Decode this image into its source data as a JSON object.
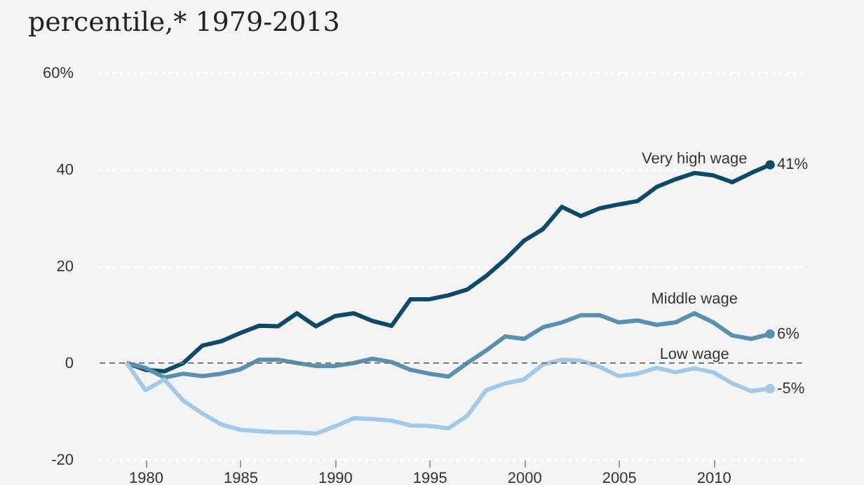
{
  "chart_data": {
    "type": "line",
    "title": "percentile,* 1979-2013",
    "x": [
      1979,
      1980,
      1981,
      1982,
      1983,
      1984,
      1985,
      1986,
      1987,
      1988,
      1989,
      1990,
      1991,
      1992,
      1993,
      1994,
      1995,
      1996,
      1997,
      1998,
      1999,
      2000,
      2001,
      2002,
      2003,
      2004,
      2005,
      2006,
      2007,
      2008,
      2009,
      2010,
      2011,
      2012,
      2013
    ],
    "series": [
      {
        "name": "Very high wage",
        "color": "#0d4a67",
        "values": [
          0,
          -1.4,
          -1.7,
          0,
          3.6,
          4.5,
          6.2,
          7.7,
          7.6,
          10.3,
          7.6,
          9.7,
          10.3,
          8.7,
          7.7,
          13.2,
          13.2,
          14,
          15.2,
          18,
          21.4,
          25.3,
          27.7,
          32.3,
          30.4,
          32,
          32.8,
          33.5,
          36.4,
          38,
          39.3,
          38.8,
          37.4,
          39.3,
          41
        ],
        "value_labels": [
          null,
          null,
          null,
          null,
          null,
          null,
          null,
          null,
          null,
          null,
          null,
          null,
          null,
          null,
          null,
          null,
          null,
          null,
          null,
          null,
          null,
          null,
          null,
          null,
          null,
          null,
          null,
          null,
          null,
          null,
          null,
          null,
          null,
          null,
          "41%"
        ]
      },
      {
        "name": "Middle wage",
        "color": "#5b8fae",
        "values": [
          0,
          -1,
          -3,
          -2.2,
          -2.7,
          -2.2,
          -1.3,
          0.7,
          0.7,
          0,
          -0.6,
          -0.6,
          0,
          0.9,
          0.2,
          -1.4,
          -2.2,
          -2.8,
          0,
          2.6,
          5.5,
          5,
          7.4,
          8.4,
          9.9,
          9.9,
          8.4,
          8.8,
          7.9,
          8.4,
          10.3,
          8.4,
          5.7,
          5,
          6
        ],
        "value_labels": [
          null,
          null,
          null,
          null,
          null,
          null,
          null,
          null,
          null,
          null,
          null,
          null,
          null,
          null,
          null,
          null,
          null,
          null,
          null,
          null,
          null,
          null,
          null,
          null,
          null,
          null,
          null,
          null,
          null,
          null,
          null,
          null,
          null,
          null,
          "6%"
        ]
      },
      {
        "name": "Low wage",
        "color": "#a3c9e8",
        "values": [
          0,
          -5.6,
          -3.4,
          -7.8,
          -10.4,
          -12.7,
          -13.8,
          -14.1,
          -14.3,
          -14.3,
          -14.6,
          -13.1,
          -11.4,
          -11.6,
          -11.9,
          -12.9,
          -13,
          -13.5,
          -10.9,
          -5.6,
          -4.2,
          -3.4,
          -0.3,
          0.7,
          0.5,
          -0.8,
          -2.7,
          -2.2,
          -1,
          -1.9,
          -1.1,
          -1.9,
          -4.2,
          -5.8,
          -5.3
        ],
        "value_labels": [
          null,
          null,
          null,
          null,
          null,
          null,
          null,
          null,
          null,
          null,
          null,
          null,
          null,
          null,
          null,
          null,
          null,
          null,
          null,
          null,
          null,
          null,
          null,
          null,
          null,
          null,
          null,
          null,
          null,
          null,
          null,
          null,
          null,
          null,
          "-5%"
        ]
      }
    ],
    "xlim": [
      1977.5,
      2014.7
    ],
    "xticks": [
      1980,
      1985,
      1990,
      1995,
      2000,
      2005,
      2010
    ],
    "ylim": [
      -20,
      60
    ],
    "yticks": [
      -20,
      0,
      20,
      40,
      {
        "value": 60,
        "label": "60%"
      }
    ],
    "grid": "y",
    "ref_lines": [
      {
        "axis": "y",
        "value": 0,
        "color": "#777777",
        "line_style": "dashed"
      }
    ],
    "legend": false
  }
}
